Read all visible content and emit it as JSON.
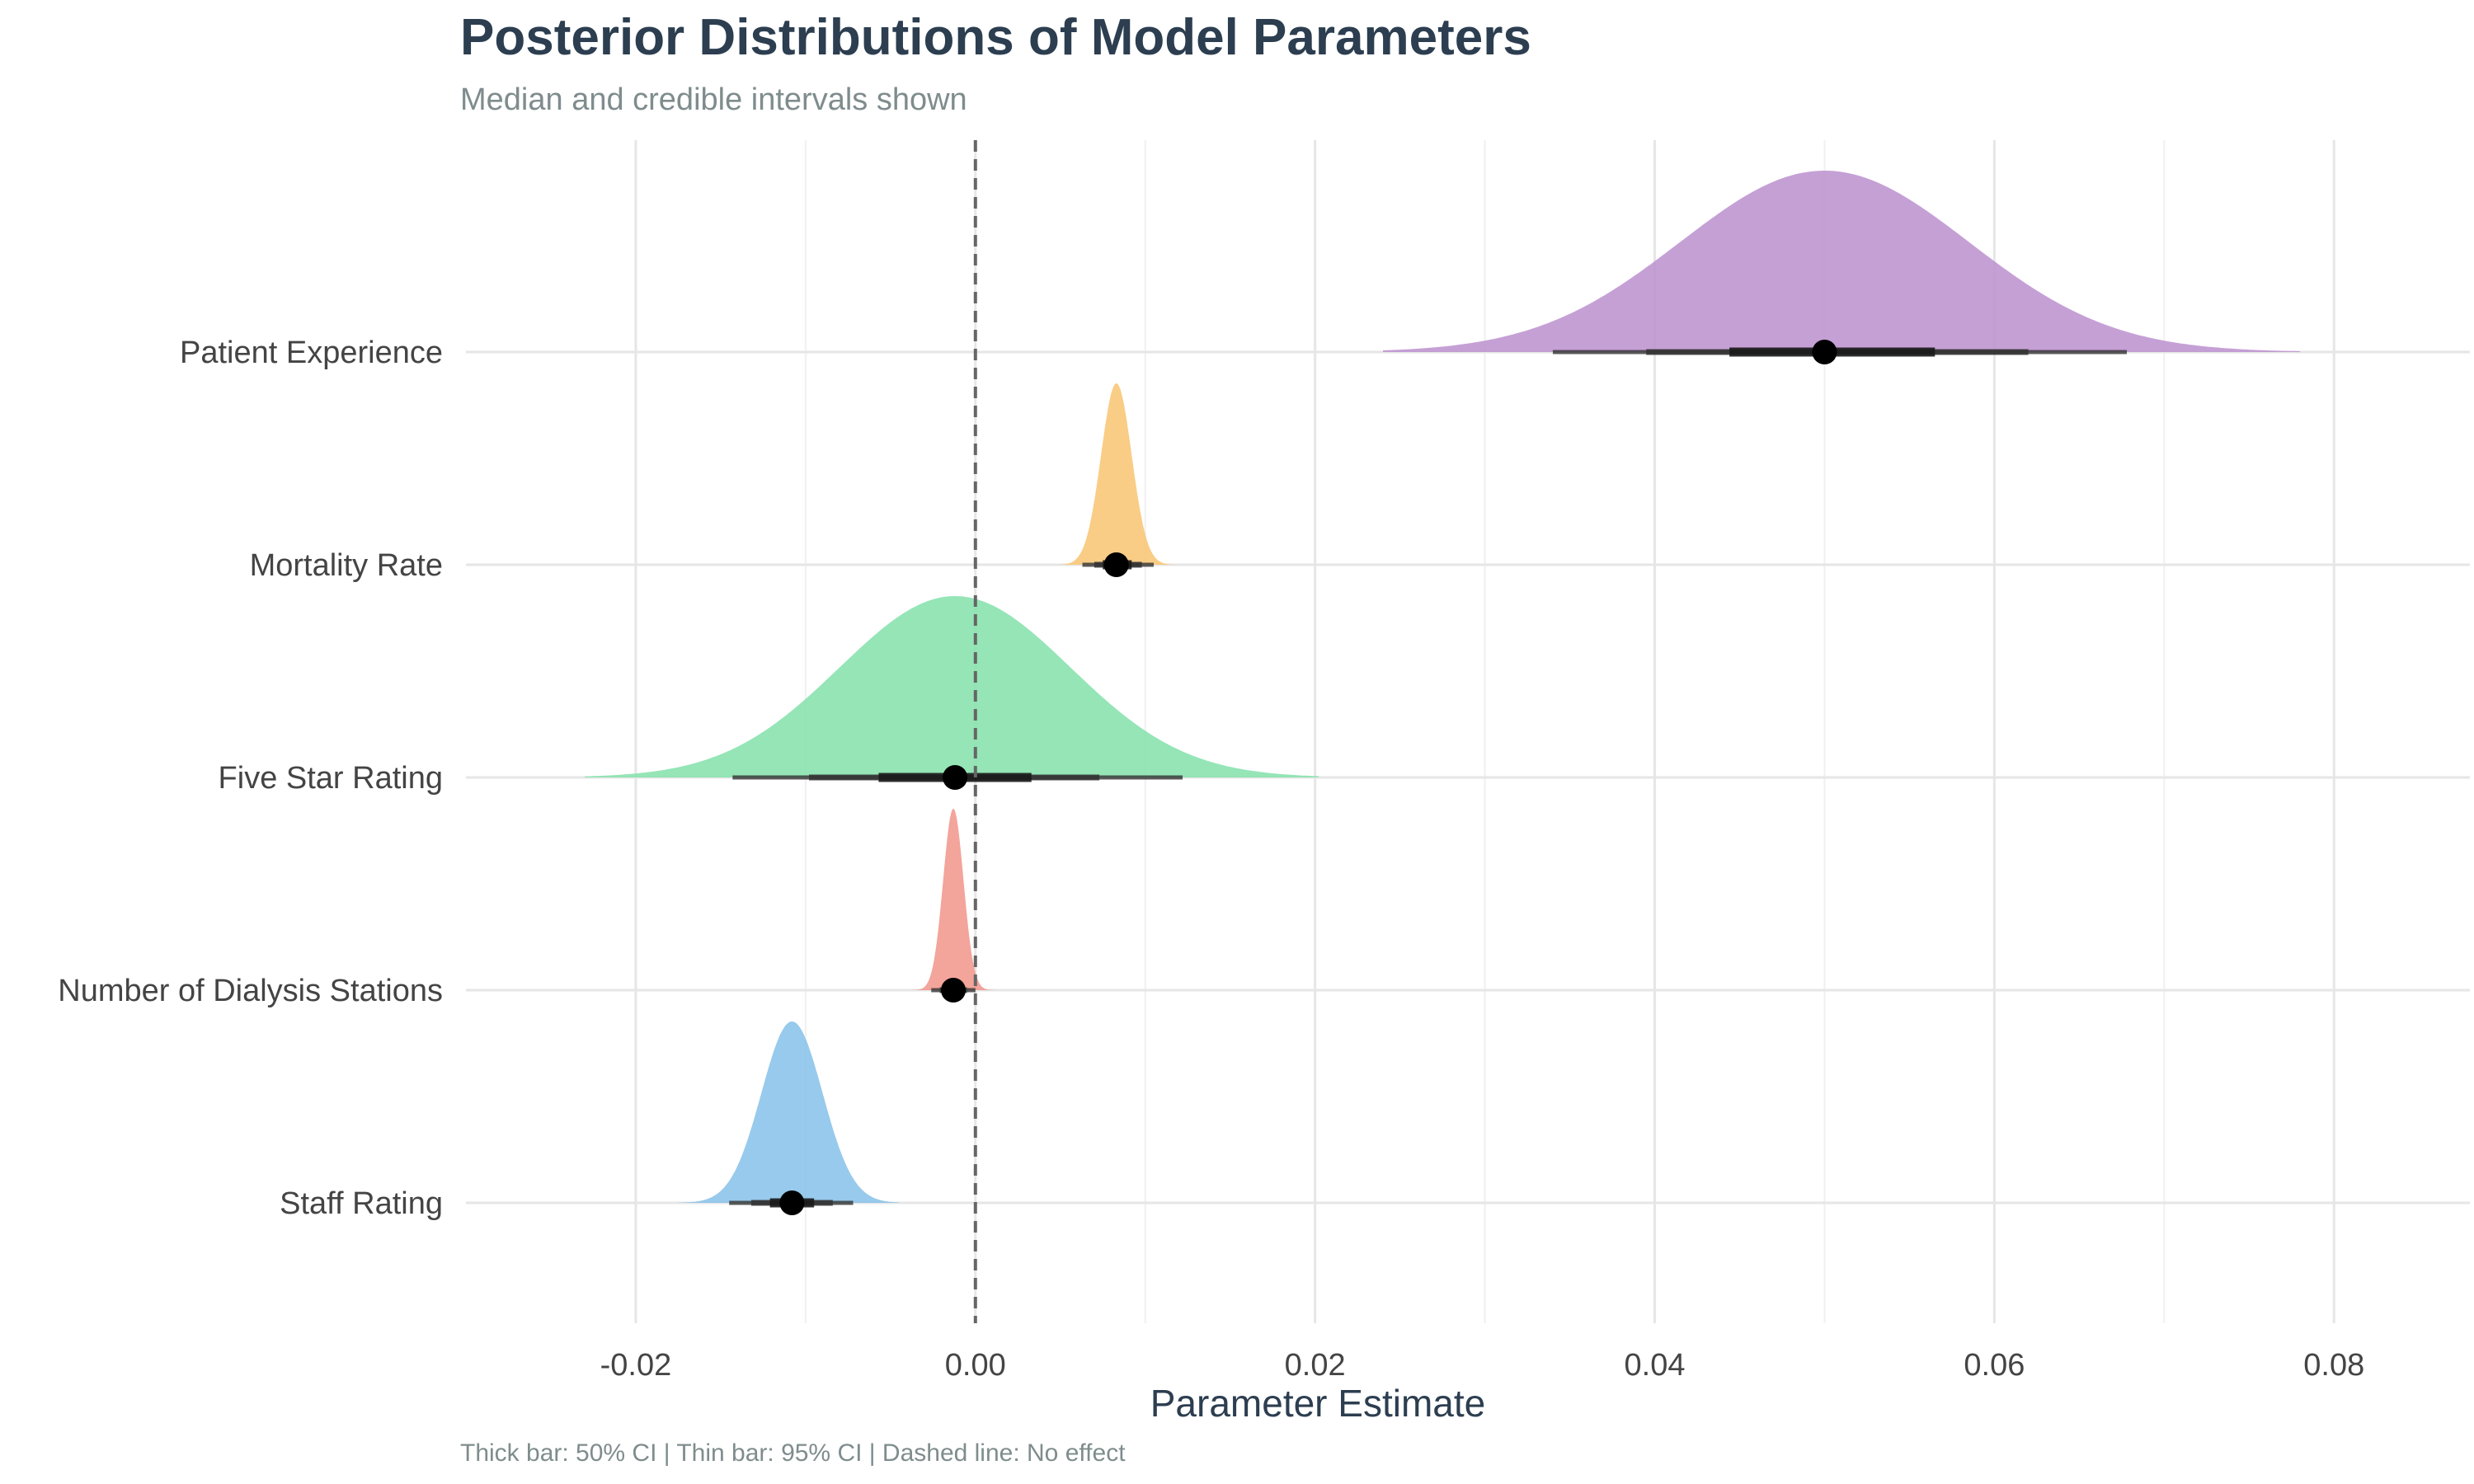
{
  "chart_data": {
    "type": "halfeye",
    "title": "Posterior Distributions of Model Parameters",
    "subtitle": "Median and credible intervals shown",
    "xlabel": "Parameter Estimate",
    "ylabel": "",
    "caption": "Thick bar: 50% CI | Thin bar: 95% CI | Dashed line: No effect",
    "xlim": [
      -0.03,
      0.088
    ],
    "x_ticks": [
      -0.02,
      0.0,
      0.02,
      0.04,
      0.06,
      0.08
    ],
    "x_tick_labels": [
      "-0.02",
      "0.00",
      "0.02",
      "0.04",
      "0.06",
      "0.08"
    ],
    "categories": [
      "Patient Experience",
      "Mortality Rate",
      "Five Star Rating",
      "Number of Dialysis Stations",
      "Staff Rating"
    ],
    "reference_line": 0.0,
    "grid": true,
    "series": [
      {
        "name": "Patient Experience",
        "color": "#bb8fce",
        "median": 0.05,
        "ci50": [
          0.0444,
          0.0565
        ],
        "ci80": [
          0.0395,
          0.062
        ],
        "ci95": [
          0.034,
          0.0678
        ],
        "sd": 0.0085,
        "range": [
          0.024,
          0.078
        ]
      },
      {
        "name": "Mortality Rate",
        "color": "#f8c471",
        "median": 0.0083,
        "ci50": [
          0.0075,
          0.0092
        ],
        "ci80": [
          0.007,
          0.0098
        ],
        "ci95": [
          0.0063,
          0.0105
        ],
        "sd": 0.0009,
        "range": [
          0.005,
          0.0118
        ]
      },
      {
        "name": "Five Star Rating",
        "color": "#82e0aa",
        "median": -0.0012,
        "ci50": [
          -0.0057,
          0.0033
        ],
        "ci80": [
          -0.0098,
          0.0073
        ],
        "ci95": [
          -0.0143,
          0.0122
        ],
        "sd": 0.0068,
        "range": [
          -0.023,
          0.0202
        ]
      },
      {
        "name": "Number of Dialysis Stations",
        "color": "#f1948a",
        "median": -0.0013,
        "ci50": [
          -0.0017,
          -0.0009
        ],
        "ci80": [
          -0.0021,
          -0.0005
        ],
        "ci95": [
          -0.0026,
          0.0
        ],
        "sd": 0.0006,
        "range": [
          -0.0038,
          0.0014
        ]
      },
      {
        "name": "Staff Rating",
        "color": "#85c1e9",
        "median": -0.0108,
        "ci50": [
          -0.0121,
          -0.0095
        ],
        "ci80": [
          -0.0132,
          -0.0084
        ],
        "ci95": [
          -0.0145,
          -0.0072
        ],
        "sd": 0.0018,
        "range": [
          -0.0175,
          -0.0045
        ]
      }
    ]
  }
}
